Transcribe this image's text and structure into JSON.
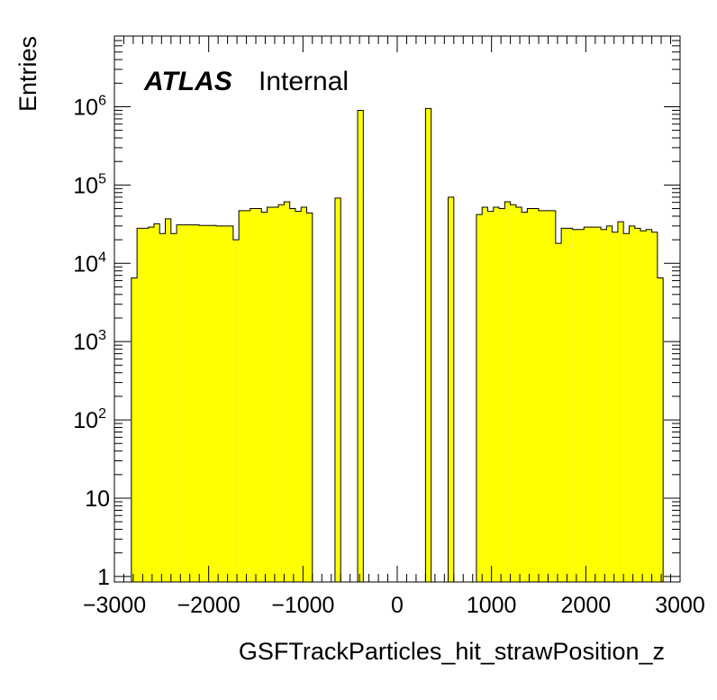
{
  "chart_data": {
    "type": "bar",
    "histogram_style": "step-filled",
    "title": "",
    "xlabel": "GSFTrackParticles_hit_strawPosition_z",
    "ylabel": "Entries",
    "xlim": [
      -3000,
      3000
    ],
    "ylim": [
      0.85,
      8000000
    ],
    "log_y": true,
    "grid": false,
    "legend": "none",
    "label_main": "ATLAS",
    "label_sub": "Internal",
    "fill_color": "#ffff00",
    "line_color": "#000000",
    "x_ticks": [
      "−3000",
      "−2000",
      "−1000",
      "0",
      "1000",
      "2000",
      "3000"
    ],
    "y_ticks": [
      {
        "base": "1",
        "exp": "",
        "value": 1
      },
      {
        "base": "10",
        "exp": "",
        "value": 10
      },
      {
        "base": "10",
        "exp": "2",
        "value": 100
      },
      {
        "base": "10",
        "exp": "3",
        "value": 1000
      },
      {
        "base": "10",
        "exp": "4",
        "value": 10000
      },
      {
        "base": "10",
        "exp": "5",
        "value": 100000
      },
      {
        "base": "10",
        "exp": "6",
        "value": 1000000
      }
    ],
    "bins": [
      [
        -2820,
        -2760,
        6500
      ],
      [
        -2760,
        -2640,
        28000
      ],
      [
        -2640,
        -2580,
        29000
      ],
      [
        -2580,
        -2520,
        32000
      ],
      [
        -2520,
        -2460,
        24000
      ],
      [
        -2460,
        -2400,
        37000
      ],
      [
        -2400,
        -2340,
        24000
      ],
      [
        -2340,
        -2280,
        31000
      ],
      [
        -2280,
        -2100,
        31000
      ],
      [
        -2100,
        -1920,
        30500
      ],
      [
        -1920,
        -1740,
        30000
      ],
      [
        -1740,
        -1680,
        20000
      ],
      [
        -1680,
        -1560,
        47000
      ],
      [
        -1560,
        -1440,
        50000
      ],
      [
        -1440,
        -1380,
        45000
      ],
      [
        -1380,
        -1260,
        52000
      ],
      [
        -1260,
        -1200,
        56000
      ],
      [
        -1200,
        -1140,
        61000
      ],
      [
        -1140,
        -1080,
        50000
      ],
      [
        -1080,
        -1020,
        46000
      ],
      [
        -1020,
        -960,
        52000
      ],
      [
        -960,
        -900,
        44000
      ],
      [
        -660,
        -600,
        68000
      ],
      [
        -420,
        -360,
        900000
      ],
      [
        300,
        360,
        950000
      ],
      [
        540,
        600,
        70000
      ],
      [
        840,
        900,
        42000
      ],
      [
        900,
        960,
        52000
      ],
      [
        960,
        1020,
        46000
      ],
      [
        1020,
        1080,
        52000
      ],
      [
        1080,
        1140,
        50000
      ],
      [
        1140,
        1200,
        61000
      ],
      [
        1200,
        1260,
        56000
      ],
      [
        1260,
        1320,
        52000
      ],
      [
        1320,
        1380,
        45000
      ],
      [
        1380,
        1500,
        50000
      ],
      [
        1500,
        1680,
        47000
      ],
      [
        1680,
        1740,
        18000
      ],
      [
        1740,
        1860,
        28000
      ],
      [
        1860,
        1980,
        27000
      ],
      [
        1980,
        2160,
        29000
      ],
      [
        2160,
        2220,
        27000
      ],
      [
        2220,
        2280,
        30000
      ],
      [
        2280,
        2340,
        25000
      ],
      [
        2340,
        2400,
        34000
      ],
      [
        2400,
        2460,
        24000
      ],
      [
        2460,
        2520,
        30000
      ],
      [
        2520,
        2580,
        28000
      ],
      [
        2580,
        2640,
        26000
      ],
      [
        2640,
        2700,
        27000
      ],
      [
        2700,
        2760,
        25000
      ],
      [
        2760,
        2820,
        6500
      ]
    ]
  }
}
